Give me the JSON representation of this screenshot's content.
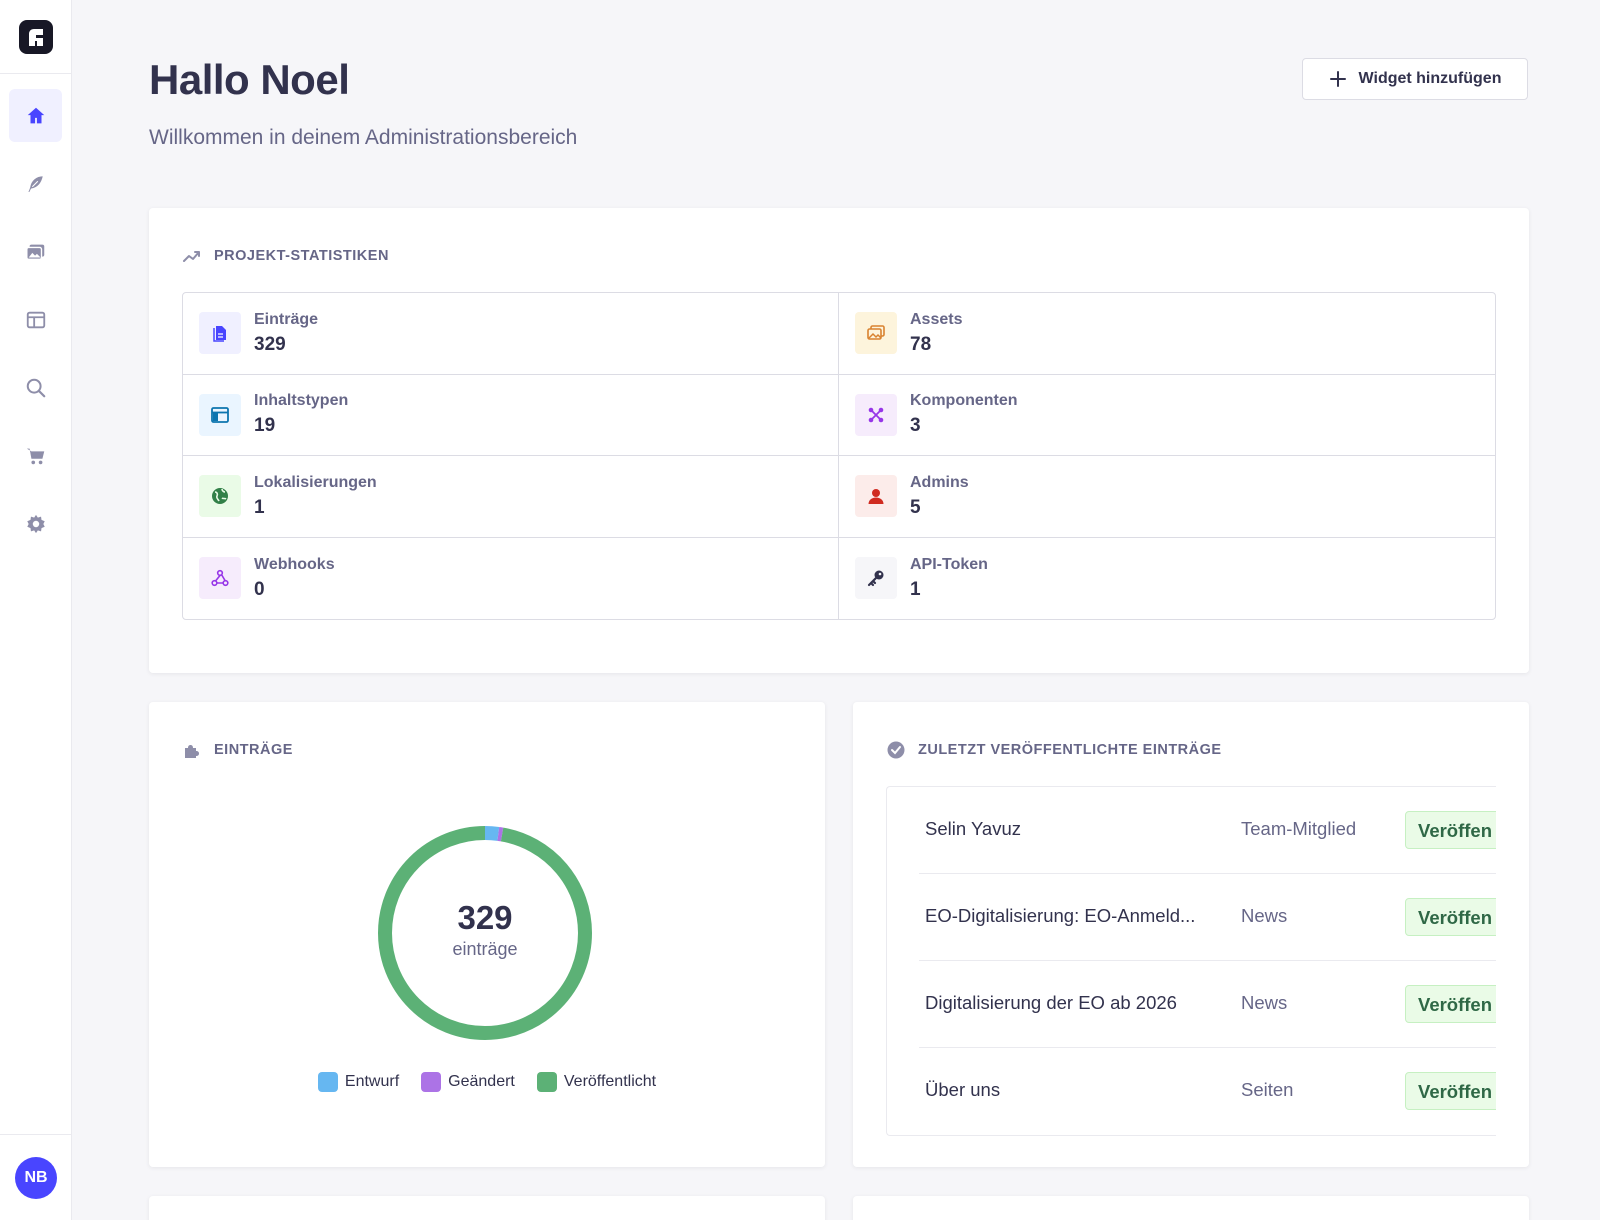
{
  "header": {
    "title": "Hallo Noel",
    "subtitle": "Willkommen in deinem Administrationsbereich",
    "add_widget_label": "Widget hinzufügen"
  },
  "sidebar": {
    "items": [
      {
        "name": "home-icon",
        "active": true
      },
      {
        "name": "feather-icon",
        "active": false
      },
      {
        "name": "media-icon",
        "active": false
      },
      {
        "name": "layout-icon",
        "active": false
      },
      {
        "name": "search-icon",
        "active": false
      },
      {
        "name": "cart-icon",
        "active": false
      },
      {
        "name": "gear-icon",
        "active": false
      }
    ],
    "avatar_initials": "NB"
  },
  "stats": {
    "heading": "Projekt-Statistiken",
    "items": [
      {
        "label": "Einträge",
        "value": "329",
        "icon": "document-icon"
      },
      {
        "label": "Assets",
        "value": "78",
        "icon": "images-icon"
      },
      {
        "label": "Inhaltstypen",
        "value": "19",
        "icon": "layout-icon"
      },
      {
        "label": "Komponenten",
        "value": "3",
        "icon": "puzzle-icon"
      },
      {
        "label": "Lokalisierungen",
        "value": "1",
        "icon": "globe-icon"
      },
      {
        "label": "Admins",
        "value": "5",
        "icon": "user-icon"
      },
      {
        "label": "Webhooks",
        "value": "0",
        "icon": "webhook-icon"
      },
      {
        "label": "API-Token",
        "value": "1",
        "icon": "key-icon"
      }
    ]
  },
  "entries": {
    "heading": "Einträge",
    "total": "329",
    "unit": "einträge",
    "legend": [
      "Entwurf",
      "Geändert",
      "Veröffentlicht"
    ]
  },
  "chart_data": {
    "type": "pie",
    "categories": [
      "Entwurf",
      "Geändert",
      "Veröffentlicht"
    ],
    "values": [
      7,
      2,
      320
    ],
    "colors": [
      "#66b7f1",
      "#ac73e6",
      "#5cb176"
    ],
    "total": 329
  },
  "recent": {
    "heading": "Zuletzt veröffentlichte Einträge",
    "rows": [
      {
        "title": "Selin Yavuz",
        "type": "Team-Mitglied",
        "status": "Veröffen"
      },
      {
        "title": "EO-Digitalisierung: EO-Anmeld...",
        "type": "News",
        "status": "Veröffen"
      },
      {
        "title": "Digitalisierung der EO ab 2026",
        "type": "News",
        "status": "Veröffen"
      },
      {
        "title": "Über uns",
        "type": "Seiten",
        "status": "Veröffen"
      }
    ]
  },
  "colors": {
    "accent": "#4945ff",
    "published": "#5cb176",
    "draft": "#66b7f1",
    "modified": "#ac73e6"
  }
}
